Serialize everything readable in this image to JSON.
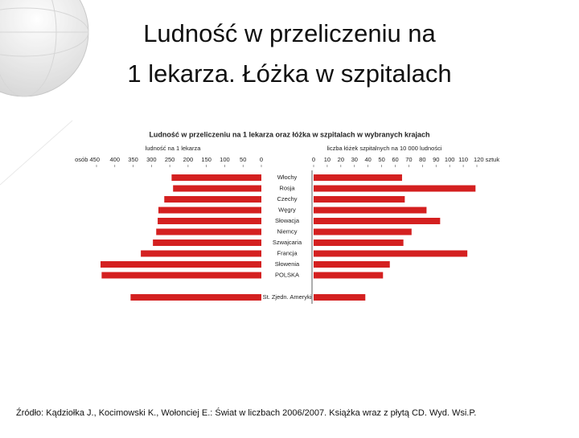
{
  "title": [
    "Ludność w przeliczeniu na",
    "1 lekarza. Łóżka w szpitalach"
  ],
  "source": "Źródło: Kądziołka J., Kocimowski K., Wołonciej E.: Świat w liczbach 2006/2007. Książka wraz z płytą CD. Wyd. Wsi.P.",
  "chart_data": {
    "type": "butterfly",
    "title": "Ludność w przeliczeniu na 1 lekarza oraz łóżka w szpitalach w wybranych krajach",
    "categories": [
      "Włochy",
      "Rosja",
      "Czechy",
      "Węgry",
      "Słowacja",
      "Niemcy",
      "Szwajcaria",
      "Francja",
      "Słowenia",
      "POLSKA",
      "St. Zjedn. Ameryki"
    ],
    "series": [
      {
        "name": "ludność na 1 lekarza",
        "color": "#d42020",
        "values": [
          245,
          241,
          265,
          281,
          283,
          287,
          296,
          329,
          439,
          436,
          357
        ]
      },
      {
        "name": "liczba łóżek szpitalnych na 10 000 ludności",
        "color": "#d42020",
        "axis": "x2",
        "values": [
          65,
          119,
          67,
          83,
          93,
          72,
          66,
          113,
          56,
          51,
          38
        ]
      }
    ],
    "xlim": [
      450,
      0
    ],
    "xticks": [
      {
        "value": 450,
        "label": "osób 450"
      },
      400,
      350,
      300,
      250,
      200,
      150,
      100,
      50,
      0
    ],
    "x2lim": [
      0,
      120
    ],
    "x2ticks": [
      0,
      10,
      20,
      30,
      40,
      50,
      60,
      70,
      80,
      90,
      100,
      110,
      {
        "value": 120,
        "label": "120 sztuk"
      }
    ]
  }
}
